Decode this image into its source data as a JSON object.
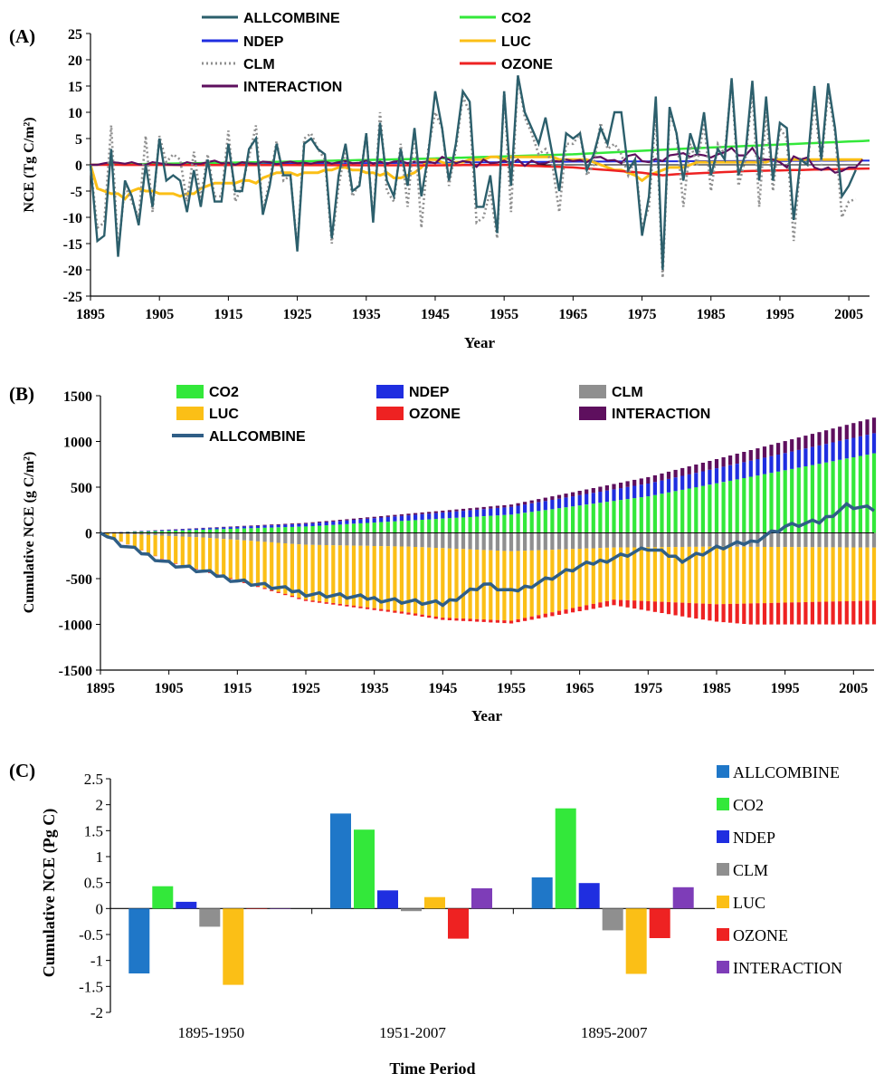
{
  "chart_data": [
    {
      "panel_label": "(A)",
      "type": "line",
      "xlabel": "Year",
      "ylabel": "NCE (Tg C/m²)",
      "xlim": [
        1895,
        2008
      ],
      "ylim": [
        -25,
        25
      ],
      "yticks": [
        "25",
        "20",
        "15",
        "10",
        "5",
        "0",
        "-5",
        "-10",
        "-15",
        "-20",
        "-25"
      ],
      "xticks": [
        "1895",
        "1905",
        "1915",
        "1925",
        "1935",
        "1945",
        "1955",
        "1965",
        "1975",
        "1985",
        "1995",
        "2005"
      ],
      "legend": [
        "ALLCOMBINE",
        "CO2",
        "NDEP",
        "LUC",
        "CLM",
        "OZONE",
        "INTERACTION"
      ],
      "colors": {
        "ALLCOMBINE": "#2c5f6c",
        "CO2": "#33e83a",
        "NDEP": "#1f2ee0",
        "LUC": "#fbbf16",
        "CLM": "#8f8f8f",
        "OZONE": "#ee2222",
        "INTERACTION": "#5e0f5e"
      },
      "annual_start_year": 1895,
      "annual_values": {
        "ALLCOMBINE": [
          0,
          -14.5,
          -13.5,
          3,
          -17.5,
          -3,
          -6,
          -11.5,
          0,
          -8,
          5,
          -3,
          -2,
          -3,
          -9,
          -1,
          -8,
          1,
          -7,
          -7,
          4,
          -5,
          -5,
          3,
          5,
          -9.5,
          -4,
          4,
          -2,
          -2,
          -16.5,
          4,
          5,
          3,
          2,
          -14,
          -2,
          4,
          -5,
          -4,
          6,
          -11,
          8,
          -3,
          -6,
          3,
          -4,
          7,
          -6,
          2,
          14,
          7,
          -3,
          4,
          14,
          12,
          -8,
          -8,
          -2,
          -13,
          14,
          -4,
          17,
          10,
          7,
          4,
          9,
          2,
          -5,
          6,
          5,
          6,
          -1,
          2,
          7,
          4,
          10,
          10,
          -1,
          1,
          -13.5,
          -6,
          13,
          -20,
          11,
          6,
          -3,
          6,
          2,
          10,
          -2,
          3,
          1,
          16.5,
          -2,
          2,
          16,
          -3,
          13,
          -3,
          8,
          7,
          -10.5,
          1,
          0,
          15,
          1,
          15.5,
          7,
          -6,
          -4,
          -1
        ],
        "CLM": [
          0,
          -12,
          -11,
          7.5,
          -16.5,
          -4,
          -7,
          -10,
          5.5,
          -9,
          5.5,
          0.5,
          2,
          1,
          -7,
          2.5,
          -6.5,
          2,
          -6,
          -6,
          6.5,
          -7,
          -4,
          1.5,
          7.5,
          -9,
          -3,
          4.5,
          -3,
          -2,
          -16,
          5,
          6,
          3,
          1,
          -15,
          -4,
          3,
          -6,
          -3.5,
          6,
          -10.5,
          10,
          -5,
          -7,
          4,
          -8,
          7,
          -12,
          3,
          10,
          7,
          -4,
          3,
          13,
          10,
          -11,
          -10,
          -5,
          -14,
          14,
          -9,
          17,
          9,
          6,
          2,
          3,
          0,
          -9,
          4,
          4,
          6,
          -2,
          0,
          8,
          3,
          4,
          2,
          -2,
          1,
          -12,
          -8,
          10,
          -21.5,
          10,
          6,
          -8,
          4,
          0,
          8,
          -5,
          4,
          2,
          16,
          -4,
          1,
          14,
          -8,
          10,
          -5,
          7,
          5,
          -14.5,
          1,
          0,
          12,
          0,
          14,
          6,
          -10,
          -7,
          -6.5
        ],
        "LUC": [
          0,
          -4.5,
          -5,
          -5.5,
          -5.5,
          -6.5,
          -5,
          -4.5,
          -5,
          -5,
          -5.5,
          -5.5,
          -5.5,
          -6,
          -5.5,
          -5.5,
          -4.5,
          -4,
          -3.5,
          -3.5,
          -3.5,
          -3.5,
          -3,
          -3,
          -3.5,
          -2.5,
          -2,
          -1.5,
          -1.5,
          -1.5,
          -2,
          -1.5,
          -1.5,
          -1.5,
          -1,
          -1,
          -0.5,
          -0.5,
          -1,
          -1,
          -1.5,
          -1.5,
          -2,
          -1.5,
          -2.5,
          -2.5,
          -2,
          -1.5,
          -0.5,
          1,
          1,
          0.5,
          0,
          0.5,
          0.5,
          1,
          1,
          1,
          1.5,
          1.5,
          1,
          1.5,
          1.5,
          1.5,
          1.5,
          1.5,
          1.5,
          1.5,
          1,
          1,
          1,
          1,
          1,
          0.5,
          0,
          -0.5,
          -1,
          -1,
          -1.5,
          -2,
          -3,
          -2,
          -1.5,
          -1,
          -0.5,
          -0.5,
          -0.5,
          0,
          0.5,
          0.5,
          0.5,
          0.5,
          0.5,
          0.5,
          0.5,
          0.5,
          0.5,
          0.5,
          0.5,
          1,
          1,
          1,
          1,
          1,
          1,
          1,
          1,
          1,
          1,
          1,
          1,
          1,
          1
        ],
        "INTERACTION": [
          0,
          0,
          0.3,
          0.5,
          0.4,
          0.2,
          0.5,
          0.1,
          0,
          0.5,
          0.3,
          0.1,
          0,
          0,
          0.5,
          0.2,
          0.2,
          0.5,
          0.8,
          0.3,
          0.4,
          0,
          0.5,
          0.3,
          0.2,
          0.6,
          0.5,
          0.1,
          0.4,
          0.6,
          0.3,
          0.4,
          0.2,
          0.5,
          0.6,
          0.2,
          0.5,
          0.7,
          0.3,
          0.4,
          0.8,
          0.2,
          0.6,
          0.2,
          0.6,
          0.7,
          0.3,
          0.6,
          0.5,
          0.6,
          0.3,
          1.5,
          1,
          0.3,
          0.7,
          0.5,
          -0.4,
          1,
          0.3,
          0.4,
          0.8,
          0.2,
          1,
          -0.2,
          0.8,
          0.2,
          0.3,
          0.8,
          0.6,
          1,
          0.7,
          0.9,
          0.5,
          1.4,
          1.5,
          0.8,
          0.9,
          0.3,
          1.7,
          2,
          0.7,
          0.5,
          1.1,
          0.7,
          1.8,
          2,
          2.2,
          1.5,
          2,
          1.8,
          1.4,
          2,
          2.4,
          3.2,
          1.8,
          1.8,
          3.2,
          1.2,
          1,
          1,
          0.5,
          -0.5,
          1.6,
          1,
          1.4,
          -0.5,
          -1,
          -0.5,
          -1.5,
          -1.2,
          -0.5,
          -0.5,
          1
        ]
      },
      "series_endpoints": {
        "CO2": [
          [
            1895,
            0
          ],
          [
            1920,
            0.5
          ],
          [
            1945,
            1.2
          ],
          [
            1965,
            2
          ],
          [
            1980,
            3
          ],
          [
            2008,
            4.6
          ]
        ],
        "NDEP": [
          [
            1895,
            0
          ],
          [
            1920,
            0.2
          ],
          [
            1945,
            0.4
          ],
          [
            1965,
            0.6
          ],
          [
            1985,
            0.7
          ],
          [
            2008,
            0.8
          ]
        ],
        "OZONE": [
          [
            1895,
            0
          ],
          [
            1945,
            -0.1
          ],
          [
            1955,
            0
          ],
          [
            1965,
            -0.5
          ],
          [
            1975,
            -1.5
          ],
          [
            1978,
            -2
          ],
          [
            1980,
            -1.8
          ],
          [
            1990,
            -1.2
          ],
          [
            2008,
            -0.7
          ]
        ]
      }
    },
    {
      "panel_label": "(B)",
      "type": "bar",
      "stacked": true,
      "xlabel": "Year",
      "ylabel": "Cumulative NCE (g C/m²)",
      "xlim": [
        1895,
        2008
      ],
      "ylim": [
        -1500,
        1500
      ],
      "yticks": [
        "1500",
        "1000",
        "500",
        "0",
        "-500",
        "-1000",
        "-1500"
      ],
      "xticks": [
        "1895",
        "1905",
        "1915",
        "1925",
        "1935",
        "1945",
        "1955",
        "1965",
        "1975",
        "1985",
        "1995",
        "2005"
      ],
      "legend": [
        "CO2",
        "NDEP",
        "CLM",
        "LUC",
        "OZONE",
        "INTERACTION",
        "ALLCOMBINE"
      ],
      "colors": {
        "CO2": "#33e83a",
        "NDEP": "#1f2ee0",
        "CLM": "#8f8f8f",
        "LUC": "#fbbf16",
        "OZONE": "#ee2222",
        "INTERACTION": "#5e0f5e",
        "ALLCOMBINE": "#2f5e86"
      },
      "cumulative_anchor_values": {
        "CO2": [
          [
            1895,
            0
          ],
          [
            1925,
            70
          ],
          [
            1955,
            200
          ],
          [
            1975,
            400
          ],
          [
            2008,
            870
          ]
        ],
        "NDEP": [
          [
            1895,
            0
          ],
          [
            1925,
            30
          ],
          [
            1955,
            85
          ],
          [
            1975,
            140
          ],
          [
            2008,
            220
          ]
        ],
        "INTERACTION": [
          [
            1895,
            0
          ],
          [
            1925,
            10
          ],
          [
            1955,
            25
          ],
          [
            1975,
            70
          ],
          [
            2008,
            170
          ]
        ],
        "CLM": [
          [
            1895,
            0
          ],
          [
            1910,
            -50
          ],
          [
            1925,
            -130
          ],
          [
            1940,
            -150
          ],
          [
            1955,
            -200
          ],
          [
            1970,
            -160
          ],
          [
            1985,
            -150
          ],
          [
            2008,
            -160
          ]
        ],
        "LUC": [
          [
            1895,
            0
          ],
          [
            1905,
            -280
          ],
          [
            1925,
            -600
          ],
          [
            1945,
            -760
          ],
          [
            1955,
            -760
          ],
          [
            1970,
            -570
          ],
          [
            1985,
            -630
          ],
          [
            2008,
            -580
          ]
        ],
        "OZONE": [
          [
            1895,
            0
          ],
          [
            1955,
            -30
          ],
          [
            1970,
            -60
          ],
          [
            1980,
            -150
          ],
          [
            1990,
            -230
          ],
          [
            2008,
            -260
          ]
        ],
        "ALLCOMBINE": [
          [
            1895,
            0
          ],
          [
            1898,
            -130
          ],
          [
            1905,
            -330
          ],
          [
            1915,
            -520
          ],
          [
            1925,
            -660
          ],
          [
            1935,
            -720
          ],
          [
            1945,
            -780
          ],
          [
            1951,
            -560
          ],
          [
            1955,
            -650
          ],
          [
            1965,
            -370
          ],
          [
            1975,
            -170
          ],
          [
            1980,
            -290
          ],
          [
            1985,
            -170
          ],
          [
            1990,
            -100
          ],
          [
            1995,
            70
          ],
          [
            2000,
            120
          ],
          [
            2004,
            300
          ],
          [
            2008,
            260
          ]
        ]
      }
    },
    {
      "panel_label": "(C)",
      "type": "bar",
      "xlabel": "Time Period",
      "ylabel": "Cumulative NCE (Pg C)",
      "ylim": [
        -2,
        2.5
      ],
      "yticks": [
        "2.5",
        "2",
        "1.5",
        "1",
        "0.5",
        "0",
        "-0.5",
        "-1",
        "-1.5",
        "-2"
      ],
      "categories": [
        "1895-1950",
        "1951-2007",
        "1895-2007"
      ],
      "series": [
        {
          "name": "ALLCOMBINE",
          "color": "#1f77c8",
          "values": [
            -1.25,
            1.83,
            0.6
          ]
        },
        {
          "name": "CO2",
          "color": "#33e83a",
          "values": [
            0.43,
            1.52,
            1.93
          ]
        },
        {
          "name": "NDEP",
          "color": "#1f2ee0",
          "values": [
            0.13,
            0.35,
            0.49
          ]
        },
        {
          "name": "CLM",
          "color": "#8f8f8f",
          "values": [
            -0.35,
            -0.05,
            -0.42
          ]
        },
        {
          "name": "LUC",
          "color": "#fbbf16",
          "values": [
            -1.47,
            0.22,
            -1.26
          ]
        },
        {
          "name": "OZONE",
          "color": "#ee2222",
          "values": [
            0,
            -0.58,
            -0.57
          ]
        },
        {
          "name": "INTERACTION",
          "color": "#7e3db8",
          "values": [
            0,
            0.39,
            0.41
          ]
        }
      ]
    }
  ]
}
